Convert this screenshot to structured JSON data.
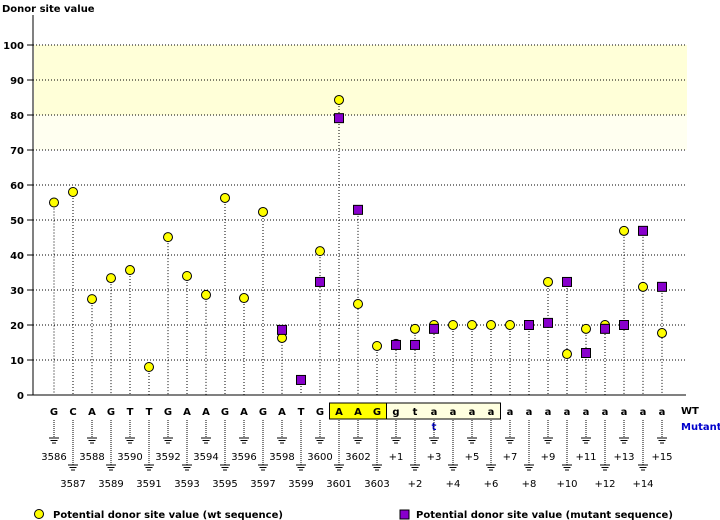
{
  "chart_data": {
    "type": "scatter",
    "title": "",
    "ylabel": "Donor site value",
    "xlabel": "",
    "ylim": [
      0,
      100
    ],
    "yticks": [
      0,
      10,
      20,
      30,
      40,
      50,
      60,
      70,
      80,
      90,
      100
    ],
    "grid": true,
    "highlight_bands": [
      {
        "from": 80,
        "to": 100,
        "color": "#ffffd8"
      },
      {
        "from": 70,
        "to": 80,
        "color": "#fffff0"
      }
    ],
    "positions": [
      "3586",
      "3587",
      "3588",
      "3589",
      "3590",
      "3591",
      "3592",
      "3593",
      "3594",
      "3595",
      "3596",
      "3597",
      "3598",
      "3599",
      "3600",
      "3601",
      "3602",
      "3603",
      "+1",
      "+2",
      "+3",
      "+4",
      "+5",
      "+6",
      "+7",
      "+8",
      "+9",
      "+10",
      "+11",
      "+12",
      "+13",
      "+14",
      "+15"
    ],
    "wt_sequence": [
      "G",
      "C",
      "A",
      "G",
      "T",
      "T",
      "G",
      "A",
      "A",
      "G",
      "A",
      "G",
      "A",
      "T",
      "G",
      "A",
      "A",
      "G",
      "g",
      "t",
      "a",
      "a",
      "a",
      "a",
      "a",
      "a",
      "a",
      "a",
      "a",
      "a",
      "a",
      "a",
      "a"
    ],
    "mutant_sequence": [
      null,
      null,
      null,
      null,
      null,
      null,
      null,
      null,
      null,
      null,
      null,
      null,
      null,
      null,
      null,
      null,
      null,
      null,
      null,
      null,
      "t",
      null,
      null,
      null,
      null,
      null,
      null,
      null,
      null,
      null,
      null,
      null,
      null
    ],
    "exon_highlight": {
      "start_index": 15,
      "end_index": 17,
      "color": "#ffff00"
    },
    "intron_highlight": {
      "start_index": 18,
      "end_index": 23,
      "color": "#ffffe0"
    },
    "row_labels": {
      "wt": "WT",
      "mutant": "Mutant"
    },
    "series": [
      {
        "name": "Potential donor site value (wt sequence)",
        "marker": "circle",
        "color": "#ffff00",
        "values": [
          55,
          58,
          27.4,
          33.4,
          35.7,
          8,
          45.1,
          34,
          28.6,
          56.3,
          27.7,
          52.3,
          16.3,
          4.3,
          41.1,
          84.3,
          26,
          14,
          14.6,
          18.9,
          20,
          20,
          20,
          20,
          20,
          20,
          32.3,
          11.7,
          18.9,
          20,
          46.9,
          30.9,
          17.7
        ]
      },
      {
        "name": "Potential donor site value (mutant sequence)",
        "marker": "square",
        "color": "#8800cc",
        "values": [
          null,
          null,
          null,
          null,
          null,
          null,
          null,
          null,
          null,
          null,
          null,
          null,
          18.6,
          4.3,
          32.3,
          79.1,
          52.9,
          null,
          14.3,
          14.3,
          18.9,
          null,
          null,
          null,
          null,
          20,
          20.6,
          32.3,
          12,
          18.9,
          20,
          46.9,
          30.9
        ]
      }
    ],
    "legend_position": "bottom"
  }
}
